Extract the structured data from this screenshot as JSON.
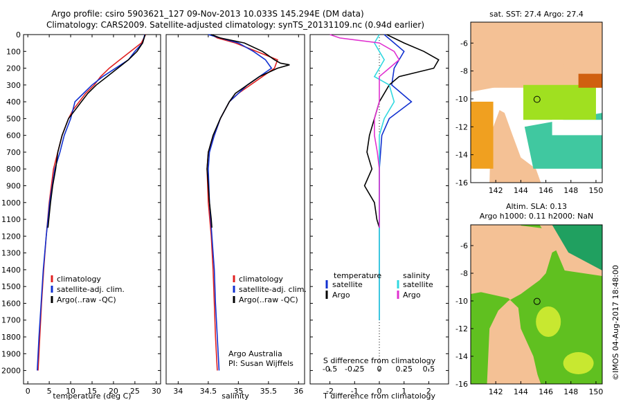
{
  "titles": {
    "line1": "Argo profile: csiro 5903621_127 09-Nov-2013 10.033S 145.294E (DM data)",
    "line2": "Climatology: CARS2009. Satellite-adjusted climatology: synTS_20131109.nc (0.94d earlier)"
  },
  "colors": {
    "climatology": "#e02020",
    "satellite": "#1030d0",
    "argo": "#000000",
    "sat_salt": "#30d8e0",
    "argo_salt": "#e030d0",
    "land": "#f4c195"
  },
  "chart_data": [
    {
      "type": "line",
      "name": "temperature",
      "xlabel": "temperature (deg C)",
      "ylabel": "",
      "xlim": [
        -1,
        31
      ],
      "ylim": [
        2080,
        0
      ],
      "xticks": [
        "0",
        "5",
        "10",
        "15",
        "20",
        "25",
        "30"
      ],
      "yticks": [
        "0",
        "100",
        "200",
        "300",
        "400",
        "500",
        "600",
        "700",
        "800",
        "900",
        "1000",
        "1100",
        "1200",
        "1300",
        "1400",
        "1500",
        "1600",
        "1700",
        "1800",
        "1900",
        "2000"
      ],
      "legend": [
        "climatology",
        "satellite-adj. clim.",
        "Argo(..raw -QC)"
      ],
      "series": [
        {
          "name": "climatology",
          "depth": [
            0,
            50,
            100,
            150,
            200,
            250,
            300,
            350,
            400,
            450,
            500,
            600,
            700,
            800,
            900,
            1000,
            1200,
            1400,
            1600,
            1800,
            2000
          ],
          "values": [
            27.5,
            26.5,
            24,
            21.5,
            19,
            17,
            15.5,
            13.5,
            12,
            10.5,
            9.5,
            8,
            7,
            6,
            5.5,
            5,
            4.3,
            3.7,
            3.2,
            2.8,
            2.4
          ]
        },
        {
          "name": "satellite-adj. clim.",
          "depth": [
            0,
            50,
            100,
            150,
            200,
            250,
            300,
            350,
            400,
            450,
            500,
            600,
            700,
            800,
            900,
            1000,
            1200,
            1400,
            1600,
            1800,
            2000
          ],
          "values": [
            27.3,
            26.8,
            25,
            23.5,
            20.5,
            17.5,
            15,
            13,
            11,
            10.5,
            10,
            8.5,
            7.5,
            6.3,
            5.7,
            5.1,
            4.3,
            3.6,
            3.1,
            2.6,
            2.2
          ]
        },
        {
          "name": "Argo(..raw -QC)",
          "depth": [
            0,
            50,
            100,
            150,
            200,
            250,
            300,
            350,
            400,
            450,
            500,
            600,
            700,
            800,
            900,
            1000,
            1100,
            1150
          ],
          "values": [
            27.4,
            26.8,
            25.5,
            23.5,
            21,
            18.5,
            16,
            14,
            12.5,
            11,
            9.5,
            8,
            7,
            6.5,
            5.8,
            5.3,
            4.9,
            4.7
          ]
        }
      ]
    },
    {
      "type": "line",
      "name": "salinity",
      "xlabel": "salinity",
      "xlim": [
        33.8,
        36.1
      ],
      "ylim": [
        2080,
        0
      ],
      "xticks": [
        "34",
        "34.5",
        "35",
        "35.5",
        "36"
      ],
      "legend": [
        "climatology",
        "satellite-adj. clim.",
        "Argo(..raw -QC)"
      ],
      "annotation": [
        "Argo Australia",
        "PI: Susan Wijffels"
      ],
      "series": [
        {
          "name": "climatology",
          "depth": [
            0,
            20,
            50,
            100,
            150,
            200,
            250,
            300,
            350,
            400,
            500,
            600,
            700,
            800,
            1000,
            1200,
            1400,
            1600,
            1800,
            2000
          ],
          "values": [
            34.55,
            34.65,
            34.95,
            35.3,
            35.65,
            35.6,
            35.4,
            35.2,
            35.0,
            34.85,
            34.7,
            34.6,
            34.5,
            34.48,
            34.5,
            34.55,
            34.58,
            34.6,
            34.62,
            34.65
          ]
        },
        {
          "name": "satellite-adj. clim.",
          "depth": [
            0,
            20,
            50,
            100,
            150,
            200,
            250,
            300,
            350,
            400,
            500,
            600,
            700,
            800,
            1000,
            1200,
            1400,
            1600,
            1800,
            2000
          ],
          "values": [
            34.5,
            34.7,
            35.0,
            35.25,
            35.45,
            35.55,
            35.35,
            35.15,
            35.0,
            34.85,
            34.7,
            34.6,
            34.52,
            34.5,
            34.52,
            34.56,
            34.6,
            34.62,
            34.65,
            34.68
          ]
        },
        {
          "name": "Argo(..raw -QC)",
          "depth": [
            0,
            20,
            50,
            100,
            150,
            170,
            180,
            200,
            250,
            300,
            350,
            400,
            500,
            600,
            700,
            800,
            900,
            1000,
            1100,
            1150
          ],
          "values": [
            34.55,
            34.7,
            35.1,
            35.4,
            35.6,
            35.7,
            35.85,
            35.65,
            35.35,
            35.15,
            34.95,
            34.85,
            34.7,
            34.58,
            34.5,
            34.48,
            34.5,
            34.52,
            34.55,
            34.56
          ]
        }
      ]
    },
    {
      "type": "line",
      "name": "differences",
      "xlabel": "T difference from climatology",
      "xlabel2": "S difference from climatology",
      "xlim": [
        -2.8,
        2.8
      ],
      "ylim": [
        2080,
        0
      ],
      "xticks": [
        "-2",
        "-1",
        "0",
        "1",
        "2"
      ],
      "xticks2": [
        "-0.5",
        "-0.25",
        "0",
        "0.25",
        "0.5"
      ],
      "legend_headers": [
        "temperature",
        "salinity"
      ],
      "legend": [
        "satellite",
        "Argo",
        "satellite",
        "Argo"
      ],
      "series": [
        {
          "name": "T satellite",
          "depth": [
            0,
            50,
            100,
            150,
            200,
            300,
            400,
            500,
            600,
            700,
            800,
            1000,
            1200,
            1400,
            1600,
            1700
          ],
          "values": [
            0.2,
            0.6,
            1.0,
            0.8,
            0.6,
            0.5,
            1.3,
            0.4,
            0.1,
            0.05,
            0.0,
            0.0,
            0.0,
            0.0,
            0.0,
            0.0
          ]
        },
        {
          "name": "T Argo",
          "depth": [
            0,
            50,
            100,
            150,
            200,
            250,
            300,
            400,
            500,
            600,
            700,
            800,
            900,
            1000,
            1100,
            1150
          ],
          "values": [
            0.3,
            1.0,
            1.8,
            2.4,
            2.2,
            0.8,
            0.4,
            0.0,
            -0.2,
            -0.4,
            -0.5,
            -0.3,
            -0.6,
            -0.2,
            -0.1,
            0.0
          ]
        },
        {
          "name": "S satellite",
          "depth": [
            0,
            50,
            100,
            150,
            200,
            250,
            300,
            400,
            500,
            600,
            700,
            800,
            1000,
            1200,
            1400,
            1600,
            1700
          ],
          "values": [
            0.0,
            -0.05,
            0.0,
            0.05,
            0.0,
            -0.05,
            0.1,
            0.15,
            0.05,
            0.0,
            0.0,
            0.0,
            0.0,
            0.0,
            0.0,
            0.0,
            0.0
          ]
        },
        {
          "name": "S Argo",
          "depth": [
            0,
            20,
            50,
            100,
            150,
            200,
            250,
            300,
            400,
            500,
            600,
            700,
            800,
            900,
            1000,
            1100,
            1150
          ],
          "values": [
            -0.5,
            -0.4,
            0.0,
            0.15,
            0.2,
            0.1,
            0.0,
            0.0,
            0.0,
            -0.05,
            -0.05,
            -0.02,
            0.0,
            0.0,
            0.0,
            0.0,
            0.0
          ]
        }
      ]
    },
    {
      "type": "heatmap",
      "name": "sat_sst_map",
      "title": "sat. SST: 27.4  Argo: 27.4",
      "xlim": [
        140,
        150.5
      ],
      "ylim": [
        -16,
        -4.5
      ],
      "xticks": [
        "142",
        "144",
        "146",
        "148",
        "150"
      ],
      "yticks": [
        "-6",
        "-8",
        "-10",
        "-12",
        "-14",
        "-16"
      ]
    },
    {
      "type": "heatmap",
      "name": "sla_map",
      "title": "Altim. SLA: 0.13",
      "subtitle": "Argo h1000: 0.11 h2000: NaN",
      "xlim": [
        140,
        150.5
      ],
      "ylim": [
        -16,
        -4.5
      ],
      "xticks": [
        "142",
        "144",
        "146",
        "148",
        "150"
      ],
      "yticks": [
        "-6",
        "-8",
        "-10",
        "-12",
        "-14",
        "-16"
      ]
    }
  ],
  "credit": "©IMOS 04-Aug-2017 18:48:00"
}
